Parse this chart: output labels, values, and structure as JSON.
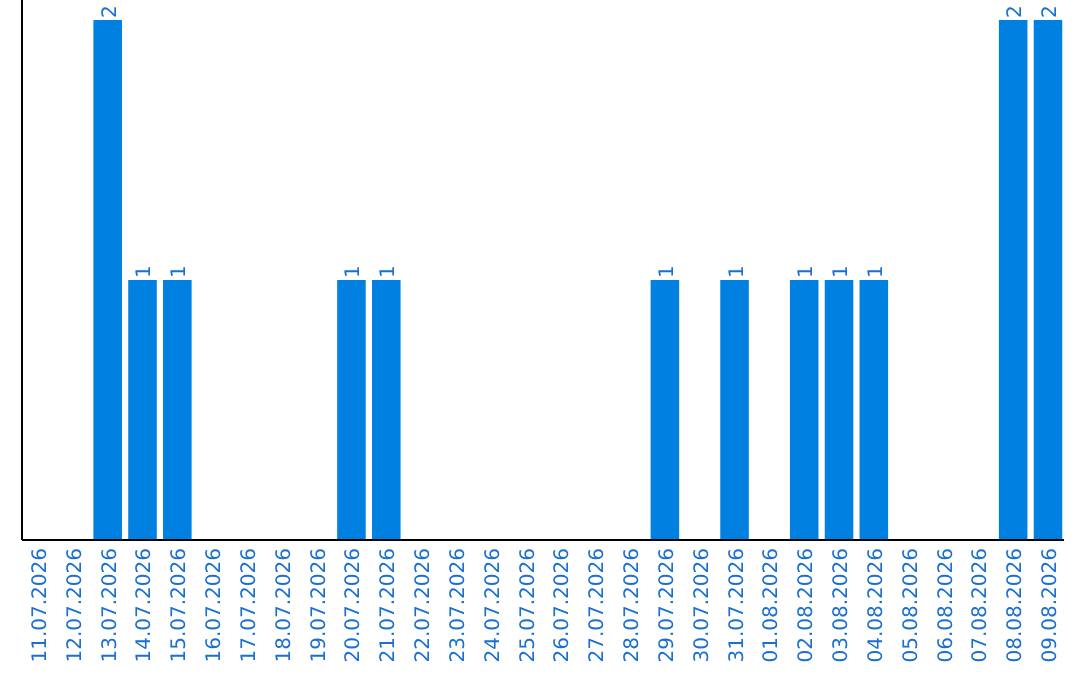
{
  "chart_data": {
    "type": "bar",
    "categories": [
      "11.07.2026",
      "12.07.2026",
      "13.07.2026",
      "14.07.2026",
      "15.07.2026",
      "16.07.2026",
      "17.07.2026",
      "18.07.2026",
      "19.07.2026",
      "20.07.2026",
      "21.07.2026",
      "22.07.2026",
      "23.07.2026",
      "24.07.2026",
      "25.07.2026",
      "26.07.2026",
      "27.07.2026",
      "28.07.2026",
      "29.07.2026",
      "30.07.2026",
      "31.07.2026",
      "01.08.2026",
      "02.08.2026",
      "03.08.2026",
      "04.08.2026",
      "05.08.2026",
      "06.08.2026",
      "07.08.2026",
      "08.08.2026",
      "09.08.2026"
    ],
    "values": [
      0,
      0,
      2,
      1,
      1,
      0,
      0,
      0,
      0,
      1,
      1,
      0,
      0,
      0,
      0,
      0,
      0,
      0,
      1,
      0,
      1,
      0,
      1,
      1,
      1,
      0,
      0,
      0,
      2,
      2
    ],
    "value_labels": [
      null,
      null,
      "2",
      "1",
      "1",
      null,
      null,
      null,
      null,
      "1",
      "1",
      null,
      null,
      null,
      null,
      null,
      null,
      null,
      "1",
      null,
      "1",
      null,
      "1",
      "1",
      "1",
      null,
      null,
      null,
      "2",
      "2"
    ],
    "color": "#0080e0",
    "ylim": [
      0,
      2
    ],
    "tick_labels": "x"
  }
}
